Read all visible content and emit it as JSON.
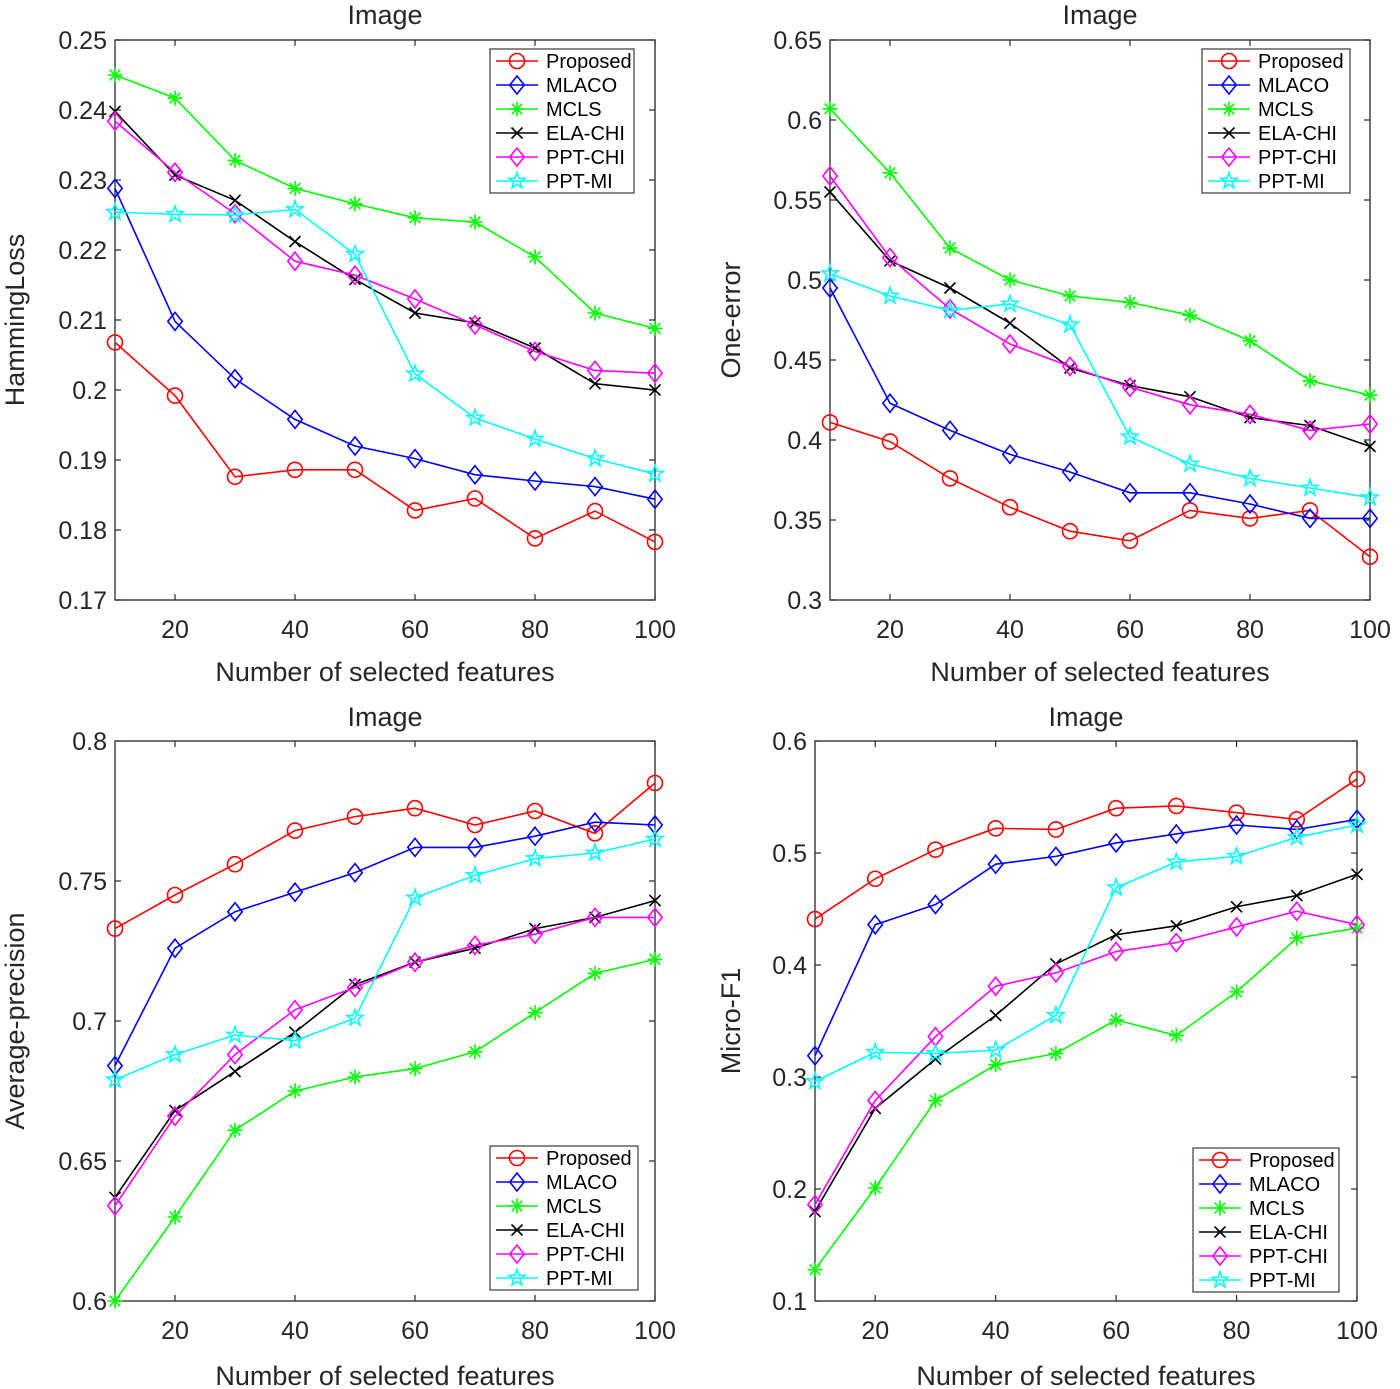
{
  "chart_data": [
    {
      "type": "line",
      "title": "Image",
      "xlabel": "Number of selected features",
      "ylabel": "HammingLoss",
      "xlim": [
        10,
        100
      ],
      "ylim": [
        0.17,
        0.25
      ],
      "xticks": [
        20,
        40,
        60,
        80,
        100
      ],
      "xtick_labels": [
        "20",
        "40",
        "60",
        "80",
        "100"
      ],
      "yticks": [
        0.17,
        0.18,
        0.19,
        0.2,
        0.21,
        0.22,
        0.23,
        0.24,
        0.25
      ],
      "ytick_labels": [
        "0.17",
        "0.18",
        "0.19",
        "0.2",
        "0.21",
        "0.22",
        "0.23",
        "0.24",
        "0.25"
      ],
      "legend_position": "top-right",
      "x": [
        10,
        20,
        30,
        40,
        50,
        60,
        70,
        80,
        90,
        100
      ],
      "series": [
        {
          "name": "Proposed",
          "values": [
            0.2068,
            0.1992,
            0.1876,
            0.1886,
            0.1886,
            0.1828,
            0.1845,
            0.1788,
            0.1827,
            0.1783
          ]
        },
        {
          "name": "MLACO",
          "values": [
            0.2288,
            0.2098,
            0.2016,
            0.1958,
            0.192,
            0.1902,
            0.1879,
            0.187,
            0.1862,
            0.1844
          ]
        },
        {
          "name": "MCLS",
          "values": [
            0.245,
            0.2417,
            0.2328,
            0.2288,
            0.2266,
            0.2246,
            0.224,
            0.219,
            0.211,
            0.2088
          ]
        },
        {
          "name": "ELA-CHI",
          "values": [
            0.2398,
            0.2307,
            0.2271,
            0.2212,
            0.2158,
            0.211,
            0.2096,
            0.206,
            0.2009,
            0.2
          ]
        },
        {
          "name": "PPT-CHI",
          "values": [
            0.2384,
            0.2311,
            0.2252,
            0.2184,
            0.2164,
            0.213,
            0.2093,
            0.2055,
            0.2028,
            0.2024
          ]
        },
        {
          "name": "PPT-MI",
          "values": [
            0.2254,
            0.2251,
            0.225,
            0.2258,
            0.2194,
            0.2023,
            0.196,
            0.193,
            0.1902,
            0.188
          ]
        }
      ]
    },
    {
      "type": "line",
      "title": "Image",
      "xlabel": "Number of selected features",
      "ylabel": "One-error",
      "xlim": [
        10,
        100
      ],
      "ylim": [
        0.3,
        0.65
      ],
      "xticks": [
        20,
        40,
        60,
        80,
        100
      ],
      "xtick_labels": [
        "20",
        "40",
        "60",
        "80",
        "100"
      ],
      "yticks": [
        0.3,
        0.35,
        0.4,
        0.45,
        0.5,
        0.55,
        0.6,
        0.65
      ],
      "ytick_labels": [
        "0.3",
        "0.35",
        "0.4",
        "0.45",
        "0.5",
        "0.55",
        "0.6",
        "0.65"
      ],
      "legend_position": "top-right",
      "x": [
        10,
        20,
        30,
        40,
        50,
        60,
        70,
        80,
        90,
        100
      ],
      "series": [
        {
          "name": "Proposed",
          "values": [
            0.411,
            0.399,
            0.376,
            0.358,
            0.343,
            0.337,
            0.356,
            0.351,
            0.356,
            0.327
          ]
        },
        {
          "name": "MLACO",
          "values": [
            0.495,
            0.423,
            0.406,
            0.391,
            0.38,
            0.367,
            0.367,
            0.36,
            0.351,
            0.351
          ]
        },
        {
          "name": "MCLS",
          "values": [
            0.607,
            0.567,
            0.52,
            0.5,
            0.49,
            0.486,
            0.478,
            0.462,
            0.437,
            0.428
          ]
        },
        {
          "name": "ELA-CHI",
          "values": [
            0.555,
            0.512,
            0.495,
            0.473,
            0.445,
            0.434,
            0.427,
            0.414,
            0.409,
            0.396
          ]
        },
        {
          "name": "PPT-CHI",
          "values": [
            0.565,
            0.514,
            0.482,
            0.46,
            0.446,
            0.433,
            0.422,
            0.416,
            0.406,
            0.41
          ]
        },
        {
          "name": "PPT-MI",
          "values": [
            0.504,
            0.49,
            0.481,
            0.485,
            0.472,
            0.402,
            0.385,
            0.376,
            0.37,
            0.364
          ]
        }
      ]
    },
    {
      "type": "line",
      "title": "Image",
      "xlabel": "Number of selected features",
      "ylabel": "Average-precision",
      "xlim": [
        10,
        100
      ],
      "ylim": [
        0.6,
        0.8
      ],
      "xticks": [
        20,
        40,
        60,
        80,
        100
      ],
      "xtick_labels": [
        "20",
        "40",
        "60",
        "80",
        "100"
      ],
      "yticks": [
        0.6,
        0.65,
        0.7,
        0.75,
        0.8
      ],
      "ytick_labels": [
        "0.6",
        "0.65",
        "0.7",
        "0.75",
        "0.8"
      ],
      "legend_position": "bottom-right",
      "x": [
        10,
        20,
        30,
        40,
        50,
        60,
        70,
        80,
        90,
        100
      ],
      "series": [
        {
          "name": "Proposed",
          "values": [
            0.733,
            0.745,
            0.756,
            0.768,
            0.773,
            0.776,
            0.77,
            0.775,
            0.767,
            0.785
          ]
        },
        {
          "name": "MLACO",
          "values": [
            0.684,
            0.726,
            0.739,
            0.746,
            0.753,
            0.762,
            0.762,
            0.766,
            0.771,
            0.77
          ]
        },
        {
          "name": "MCLS",
          "values": [
            0.6,
            0.63,
            0.661,
            0.675,
            0.68,
            0.683,
            0.689,
            0.703,
            0.717,
            0.722
          ]
        },
        {
          "name": "ELA-CHI",
          "values": [
            0.637,
            0.668,
            0.682,
            0.696,
            0.713,
            0.721,
            0.726,
            0.733,
            0.737,
            0.743
          ]
        },
        {
          "name": "PPT-CHI",
          "values": [
            0.634,
            0.666,
            0.688,
            0.704,
            0.712,
            0.721,
            0.727,
            0.731,
            0.737,
            0.737
          ]
        },
        {
          "name": "PPT-MI",
          "values": [
            0.679,
            0.688,
            0.695,
            0.693,
            0.701,
            0.744,
            0.752,
            0.758,
            0.76,
            0.765
          ]
        }
      ]
    },
    {
      "type": "line",
      "title": "Image",
      "xlabel": "Number of selected features",
      "ylabel": "Micro-F1",
      "xlim": [
        10,
        100
      ],
      "ylim": [
        0.1,
        0.6
      ],
      "xticks": [
        20,
        40,
        60,
        80,
        100
      ],
      "xtick_labels": [
        "20",
        "40",
        "60",
        "80",
        "100"
      ],
      "yticks": [
        0.1,
        0.2,
        0.3,
        0.4,
        0.5,
        0.6
      ],
      "ytick_labels": [
        "0.1",
        "0.2",
        "0.3",
        "0.4",
        "0.5",
        "0.6"
      ],
      "legend_position": "bottom-right",
      "x": [
        10,
        20,
        30,
        40,
        50,
        60,
        70,
        80,
        90,
        100
      ],
      "series": [
        {
          "name": "Proposed",
          "values": [
            0.441,
            0.477,
            0.503,
            0.522,
            0.521,
            0.54,
            0.542,
            0.536,
            0.53,
            0.566
          ]
        },
        {
          "name": "MLACO",
          "values": [
            0.319,
            0.436,
            0.454,
            0.49,
            0.497,
            0.509,
            0.517,
            0.525,
            0.521,
            0.53
          ]
        },
        {
          "name": "MCLS",
          "values": [
            0.128,
            0.201,
            0.279,
            0.311,
            0.321,
            0.351,
            0.337,
            0.376,
            0.424,
            0.433
          ]
        },
        {
          "name": "ELA-CHI",
          "values": [
            0.18,
            0.272,
            0.316,
            0.355,
            0.401,
            0.427,
            0.435,
            0.452,
            0.462,
            0.481
          ]
        },
        {
          "name": "PPT-CHI",
          "values": [
            0.186,
            0.279,
            0.336,
            0.381,
            0.393,
            0.412,
            0.42,
            0.434,
            0.448,
            0.436
          ]
        },
        {
          "name": "PPT-MI",
          "values": [
            0.296,
            0.322,
            0.321,
            0.324,
            0.355,
            0.469,
            0.492,
            0.497,
            0.514,
            0.525
          ]
        }
      ]
    }
  ],
  "series_styles": [
    {
      "name": "Proposed",
      "color": "#ff0000",
      "marker": "circle"
    },
    {
      "name": "MLACO",
      "color": "#0000ff",
      "marker": "diamond"
    },
    {
      "name": "MCLS",
      "color": "#00ff00",
      "marker": "asterisk"
    },
    {
      "name": "ELA-CHI",
      "color": "#000000",
      "marker": "cross"
    },
    {
      "name": "PPT-CHI",
      "color": "#ff00ff",
      "marker": "diamond"
    },
    {
      "name": "PPT-MI",
      "color": "#00ffff",
      "marker": "pentagram"
    }
  ]
}
